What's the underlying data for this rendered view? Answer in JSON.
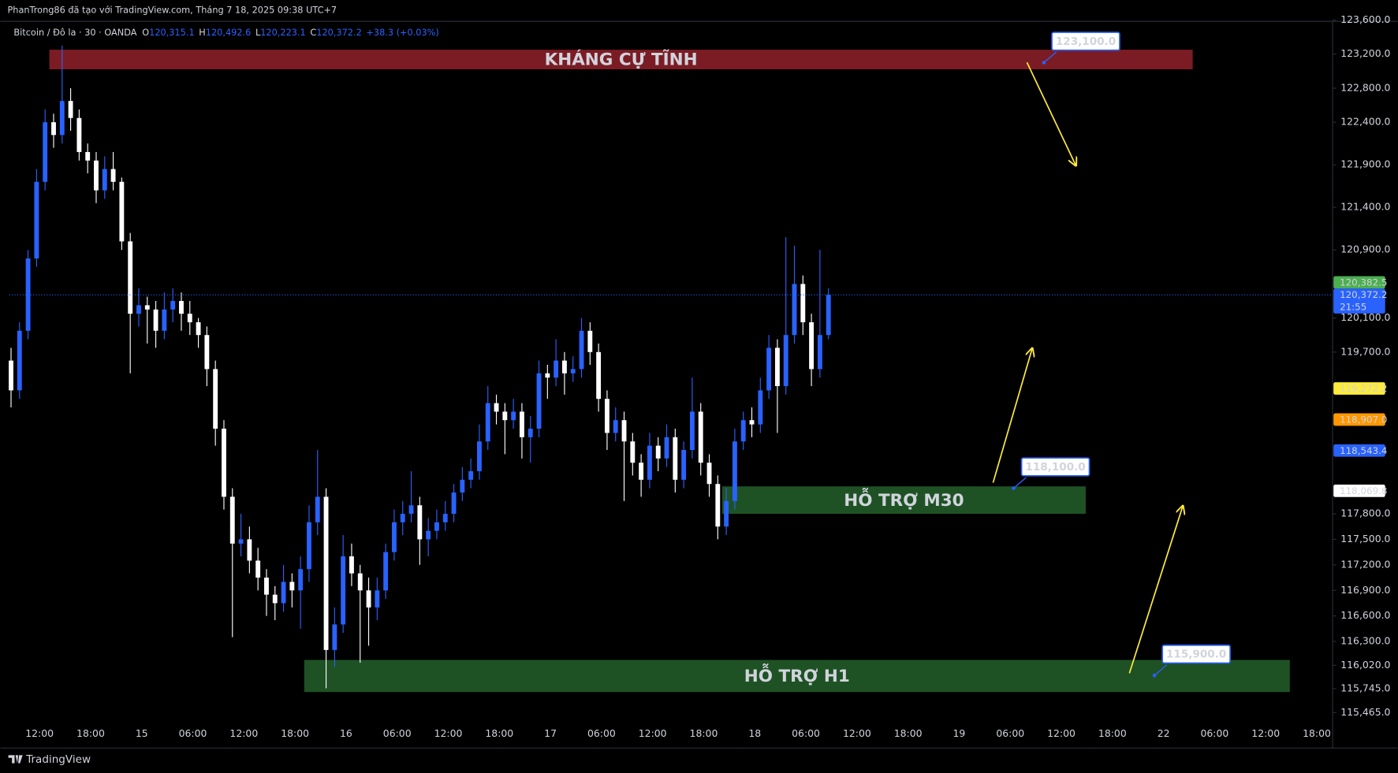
{
  "header": {
    "credit": "PhanTrong86 đã tạo với TradingView.com, Tháng 7 18, 2025 09:38 UTC+7",
    "symbol": "Bitcoin / Đô la · 30 · OANDA",
    "legend": [
      {
        "key": "O",
        "value": "120,315.1"
      },
      {
        "key": "H",
        "value": "120,492.6"
      },
      {
        "key": "L",
        "value": "120,223.1"
      },
      {
        "key": "C",
        "value": "120,372.2"
      }
    ],
    "change": "+38.3 (+0.03%)"
  },
  "footer": {
    "brand": "TradingView"
  },
  "chart_data": {
    "type": "candlestick",
    "up_color": "#2962ff",
    "down_color": "#ffffff",
    "ylim": [
      115100,
      123585
    ],
    "yticks": [
      {
        "value": 123600,
        "label": "123,600.0"
      },
      {
        "value": 123200,
        "label": "123,200.0"
      },
      {
        "value": 122800,
        "label": "122,800.0"
      },
      {
        "value": 122400,
        "label": "122,400.0"
      },
      {
        "value": 121900,
        "label": "121,900.0"
      },
      {
        "value": 121400,
        "label": "121,400.0"
      },
      {
        "value": 120900,
        "label": "120,900.0"
      },
      {
        "value": 120100,
        "label": "120,100.0"
      },
      {
        "value": 119700,
        "label": "119,700.0"
      },
      {
        "value": 117800,
        "label": "117,800.0"
      },
      {
        "value": 117500,
        "label": "117,500.0"
      },
      {
        "value": 117200,
        "label": "117,200.0"
      },
      {
        "value": 116900,
        "label": "116,900.0"
      },
      {
        "value": 116600,
        "label": "116,600.0"
      },
      {
        "value": 116300,
        "label": "116,300.0"
      },
      {
        "value": 116020,
        "label": "116,020.0"
      },
      {
        "value": 115745,
        "label": "115,745.0"
      },
      {
        "value": 115465,
        "label": "115,465.0"
      }
    ],
    "time_labels": [
      "12:00",
      "18:00",
      "15",
      "06:00",
      "12:00",
      "18:00",
      "16",
      "06:00",
      "12:00",
      "18:00",
      "17",
      "06:00",
      "12:00",
      "18:00",
      "18",
      "06:00",
      "12:00",
      "18:00",
      "19",
      "06:00",
      "12:00",
      "18:00",
      "22",
      "06:00",
      "12:00",
      "18:00"
    ],
    "ohlc": [
      [
        119600,
        119750,
        119050,
        119250
      ],
      [
        119250,
        120050,
        119150,
        119950
      ],
      [
        119950,
        120900,
        119850,
        120800
      ],
      [
        120800,
        121850,
        120700,
        121700
      ],
      [
        121700,
        122550,
        121600,
        122400
      ],
      [
        122400,
        122500,
        122100,
        122250
      ],
      [
        122250,
        123300,
        122150,
        122650
      ],
      [
        122650,
        122800,
        122300,
        122450
      ],
      [
        122450,
        122550,
        121950,
        122050
      ],
      [
        122050,
        122150,
        121800,
        121950
      ],
      [
        121950,
        122050,
        121450,
        121600
      ],
      [
        121600,
        122000,
        121500,
        121850
      ],
      [
        121850,
        122050,
        121600,
        121700
      ],
      [
        121700,
        121750,
        120900,
        121000
      ],
      [
        121000,
        121100,
        119450,
        120150
      ],
      [
        120150,
        120450,
        120000,
        120250
      ],
      [
        120250,
        120350,
        119800,
        120200
      ],
      [
        120200,
        120300,
        119750,
        119950
      ],
      [
        119950,
        120400,
        119850,
        120200
      ],
      [
        120200,
        120450,
        120050,
        120300
      ],
      [
        120300,
        120400,
        119950,
        120150
      ],
      [
        120150,
        120300,
        119900,
        120050
      ],
      [
        120050,
        120100,
        119750,
        119900
      ],
      [
        119900,
        120000,
        119300,
        119500
      ],
      [
        119500,
        119600,
        118600,
        118800
      ],
      [
        118800,
        118900,
        117850,
        118000
      ],
      [
        118000,
        118100,
        116350,
        117450
      ],
      [
        117450,
        117800,
        117300,
        117500
      ],
      [
        117500,
        117650,
        117100,
        117250
      ],
      [
        117250,
        117400,
        116900,
        117050
      ],
      [
        117050,
        117150,
        116600,
        116850
      ],
      [
        116850,
        116950,
        116550,
        116750
      ],
      [
        116750,
        117200,
        116650,
        117000
      ],
      [
        117000,
        117100,
        116700,
        116900
      ],
      [
        116900,
        117300,
        116450,
        117150
      ],
      [
        117150,
        117900,
        117000,
        117700
      ],
      [
        117700,
        118550,
        117550,
        118000
      ],
      [
        118000,
        118100,
        115750,
        116200
      ],
      [
        116200,
        116700,
        116000,
        116500
      ],
      [
        116500,
        117550,
        116400,
        117300
      ],
      [
        117300,
        117450,
        116950,
        117100
      ],
      [
        117100,
        117200,
        116050,
        116900
      ],
      [
        116900,
        117050,
        116250,
        116700
      ],
      [
        116700,
        117050,
        116550,
        116900
      ],
      [
        116900,
        117450,
        116800,
        117350
      ],
      [
        117350,
        117850,
        117250,
        117700
      ],
      [
        117700,
        117950,
        117550,
        117800
      ],
      [
        117800,
        118300,
        117700,
        117900
      ],
      [
        117900,
        118000,
        117200,
        117500
      ],
      [
        117500,
        117750,
        117300,
        117600
      ],
      [
        117600,
        117850,
        117500,
        117700
      ],
      [
        117700,
        117950,
        117600,
        117800
      ],
      [
        117800,
        118150,
        117700,
        118050
      ],
      [
        118050,
        118350,
        117950,
        118200
      ],
      [
        118200,
        118450,
        118100,
        118300
      ],
      [
        118300,
        118850,
        118200,
        118650
      ],
      [
        118650,
        119300,
        118550,
        119100
      ],
      [
        119100,
        119200,
        118850,
        119000
      ],
      [
        119000,
        119100,
        118500,
        118900
      ],
      [
        118900,
        119150,
        118800,
        119000
      ],
      [
        119000,
        119100,
        118450,
        118700
      ],
      [
        118700,
        118950,
        118400,
        118800
      ],
      [
        118800,
        119600,
        118700,
        119450
      ],
      [
        119450,
        119550,
        119150,
        119400
      ],
      [
        119400,
        119850,
        119300,
        119600
      ],
      [
        119600,
        119700,
        119200,
        119450
      ],
      [
        119450,
        119650,
        119350,
        119500
      ],
      [
        119500,
        120100,
        119400,
        119950
      ],
      [
        119950,
        120050,
        119550,
        119700
      ],
      [
        119700,
        119800,
        119000,
        119150
      ],
      [
        119150,
        119250,
        118550,
        118750
      ],
      [
        118750,
        119050,
        118650,
        118900
      ],
      [
        118900,
        119000,
        117950,
        118650
      ],
      [
        118650,
        118750,
        118250,
        118400
      ],
      [
        118400,
        118500,
        118000,
        118200
      ],
      [
        118200,
        118750,
        118100,
        118600
      ],
      [
        118600,
        118700,
        118300,
        118450
      ],
      [
        118450,
        118850,
        118350,
        118700
      ],
      [
        118700,
        118800,
        118050,
        118200
      ],
      [
        118200,
        118650,
        118100,
        118550
      ],
      [
        118550,
        119400,
        118450,
        119000
      ],
      [
        119000,
        119100,
        118250,
        118400
      ],
      [
        118400,
        118500,
        118000,
        118150
      ],
      [
        118150,
        118250,
        117500,
        117650
      ],
      [
        117650,
        118100,
        117550,
        117950
      ],
      [
        117950,
        118800,
        117850,
        118650
      ],
      [
        118650,
        119000,
        118550,
        118900
      ],
      [
        118900,
        119050,
        118700,
        118850
      ],
      [
        118850,
        119400,
        118750,
        119250
      ],
      [
        119250,
        119900,
        119150,
        119750
      ],
      [
        119750,
        119850,
        118750,
        119300
      ],
      [
        119300,
        121050,
        119200,
        119900
      ],
      [
        119900,
        120950,
        119800,
        120500
      ],
      [
        120500,
        120600,
        119900,
        120050
      ],
      [
        120050,
        120150,
        119300,
        119500
      ],
      [
        119500,
        120900,
        119400,
        119900
      ],
      [
        119900,
        120450,
        119850,
        120372.2
      ]
    ],
    "zones": [
      {
        "label": "KHÁNG CỰ TĨNH",
        "top": 123252,
        "bottom": 123022,
        "color": "#7b1c24"
      },
      {
        "label": "HỖ TRỢ M30",
        "top": 118122,
        "bottom": 117800,
        "color": "#1e5225"
      },
      {
        "label": "HỖ TRỢ H1",
        "top": 116083,
        "bottom": 115706,
        "color": "#1e5225"
      }
    ],
    "price_notes": [
      {
        "value": 123100,
        "label": "123,100.0"
      },
      {
        "value": 118100,
        "label": "118,100.0"
      },
      {
        "value": 115900,
        "label": "115,900.0"
      }
    ],
    "price_labels": [
      {
        "value": 120382.5,
        "label": "120,382.5",
        "color": "#4caf50",
        "text_color": "#ffffff"
      },
      {
        "value": 120372.2,
        "label": "120,372.2",
        "time": "21:55",
        "color": "#2962ff",
        "text_color": "#ffffff"
      },
      {
        "value": 119272.2,
        "label": "119,272.2",
        "color": "#ffeb3b",
        "text_color": "#000000"
      },
      {
        "value": 118907.0,
        "label": "118,907.0",
        "color": "#ff9800",
        "text_color": "#000000"
      },
      {
        "value": 118543.4,
        "label": "118,543.4",
        "color": "#2962ff",
        "text_color": "#ffffff"
      },
      {
        "value": 118069.8,
        "label": "118,069.8",
        "color": "#ffffff",
        "text_color": "#000000"
      }
    ]
  }
}
